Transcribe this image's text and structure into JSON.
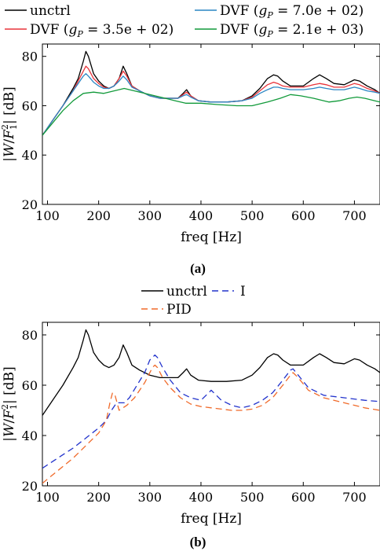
{
  "chart_data": [
    {
      "type": "line",
      "caption": "(a)",
      "xlabel": "freq [Hz]",
      "ylabel": "|W/F_1^2| [dB]",
      "xlim": [
        90,
        750
      ],
      "ylim": [
        20,
        85
      ],
      "xticks": [
        100,
        200,
        300,
        400,
        500,
        600,
        700
      ],
      "yticks": [
        20,
        40,
        60,
        80
      ],
      "grid": false,
      "legend_position": "top",
      "series": [
        {
          "name": "unctrl",
          "color": "#000000",
          "dash": "solid",
          "x": [
            90,
            110,
            130,
            150,
            160,
            170,
            175,
            180,
            190,
            200,
            210,
            220,
            230,
            240,
            248,
            255,
            265,
            280,
            300,
            320,
            340,
            355,
            365,
            372,
            380,
            395,
            420,
            450,
            480,
            500,
            515,
            530,
            542,
            550,
            560,
            575,
            600,
            620,
            632,
            645,
            660,
            680,
            700,
            710,
            725,
            740,
            750
          ],
          "y": [
            48,
            54,
            60,
            67,
            71,
            78,
            82,
            80,
            73,
            70,
            68,
            67,
            68,
            71,
            76,
            73,
            68,
            66,
            64,
            63,
            63,
            63,
            65,
            66.5,
            64,
            62,
            61.5,
            61.5,
            62,
            64,
            67,
            71,
            72.5,
            72,
            70,
            68,
            68,
            71,
            72.5,
            71,
            69,
            68.5,
            70.5,
            70,
            68,
            66.5,
            65
          ]
        },
        {
          "name": "DVF (g_P = 3.5e+02)",
          "color": "#e8333a",
          "dash": "solid",
          "x": [
            90,
            110,
            130,
            150,
            160,
            170,
            175,
            180,
            190,
            200,
            210,
            220,
            230,
            240,
            248,
            255,
            265,
            280,
            300,
            320,
            340,
            355,
            365,
            372,
            380,
            395,
            420,
            450,
            480,
            500,
            515,
            530,
            542,
            550,
            560,
            575,
            600,
            620,
            632,
            645,
            660,
            680,
            700,
            710,
            725,
            740,
            750
          ],
          "y": [
            48,
            54,
            60,
            66,
            70,
            74,
            76,
            75,
            71,
            69,
            67.5,
            67,
            68,
            71,
            74,
            72,
            68,
            66,
            64,
            63,
            63,
            63,
            64.5,
            65.5,
            64,
            62,
            61.5,
            61.5,
            62,
            63.5,
            66,
            68.5,
            69.5,
            69,
            68,
            67.5,
            67.5,
            68.5,
            69,
            68.5,
            67.5,
            67.5,
            69,
            68.5,
            67,
            66,
            65
          ]
        },
        {
          "name": "DVF (g_P = 7.0e+02)",
          "color": "#2a85c4",
          "dash": "solid",
          "x": [
            90,
            110,
            130,
            150,
            160,
            170,
            175,
            180,
            190,
            200,
            210,
            220,
            230,
            240,
            248,
            255,
            265,
            280,
            300,
            320,
            340,
            355,
            365,
            372,
            380,
            395,
            420,
            450,
            480,
            500,
            515,
            530,
            542,
            550,
            560,
            575,
            600,
            620,
            632,
            645,
            660,
            680,
            700,
            710,
            725,
            740,
            750
          ],
          "y": [
            48,
            54,
            60,
            66,
            69,
            72,
            73,
            72,
            69.5,
            68,
            67,
            67,
            68,
            70,
            72,
            70.5,
            67.5,
            66,
            64,
            63,
            63,
            63,
            64,
            64.5,
            63.5,
            62,
            61.5,
            61.5,
            62,
            63,
            65,
            66.5,
            67.5,
            67.5,
            67,
            66.5,
            66.5,
            67,
            67.5,
            67,
            66.5,
            66.5,
            67.5,
            67,
            66,
            65.5,
            65
          ]
        },
        {
          "name": "DVF (g_P = 2.1e+03)",
          "color": "#119a3a",
          "dash": "solid",
          "x": [
            90,
            110,
            130,
            150,
            170,
            190,
            210,
            230,
            250,
            270,
            290,
            310,
            330,
            350,
            370,
            400,
            430,
            470,
            500,
            530,
            555,
            575,
            595,
            620,
            650,
            670,
            690,
            705,
            720,
            740,
            750
          ],
          "y": [
            48,
            53,
            58,
            62,
            65,
            65.5,
            65,
            66,
            67,
            66,
            65,
            64,
            63,
            62,
            61,
            61,
            60.5,
            60,
            60,
            61.5,
            63,
            64.5,
            64,
            63,
            61.5,
            62,
            63,
            63.5,
            63,
            62,
            61.5
          ]
        }
      ]
    },
    {
      "type": "line",
      "caption": "(b)",
      "xlabel": "freq [Hz]",
      "ylabel": "|W/F_1^2| [dB]",
      "xlim": [
        90,
        750
      ],
      "ylim": [
        20,
        85
      ],
      "xticks": [
        100,
        200,
        300,
        400,
        500,
        600,
        700
      ],
      "yticks": [
        20,
        40,
        60,
        80
      ],
      "grid": false,
      "legend_position": "top",
      "series": [
        {
          "name": "unctrl",
          "color": "#000000",
          "dash": "solid",
          "x": [
            90,
            110,
            130,
            150,
            160,
            170,
            175,
            180,
            190,
            200,
            210,
            220,
            230,
            240,
            248,
            255,
            265,
            280,
            300,
            320,
            340,
            355,
            365,
            372,
            380,
            395,
            420,
            450,
            480,
            500,
            515,
            530,
            542,
            550,
            560,
            575,
            600,
            620,
            632,
            645,
            660,
            680,
            700,
            710,
            725,
            740,
            750
          ],
          "y": [
            48,
            54,
            60,
            67,
            71,
            78,
            82,
            80,
            73,
            70,
            68,
            67,
            68,
            71,
            76,
            73,
            68,
            66,
            64,
            63,
            63,
            63,
            65,
            66.5,
            64,
            62,
            61.5,
            61.5,
            62,
            64,
            67,
            71,
            72.5,
            72,
            70,
            68,
            68,
            71,
            72.5,
            71,
            69,
            68.5,
            70.5,
            70,
            68,
            66.5,
            65
          ]
        },
        {
          "name": "I",
          "color": "#2233cc",
          "dash": "8,5",
          "x": [
            90,
            120,
            150,
            175,
            200,
            215,
            225,
            235,
            250,
            260,
            275,
            290,
            300,
            310,
            315,
            325,
            340,
            360,
            380,
            400,
            410,
            420,
            430,
            440,
            460,
            480,
            500,
            520,
            540,
            560,
            575,
            580,
            590,
            610,
            640,
            680,
            720,
            750
          ],
          "y": [
            27,
            31,
            35,
            39,
            43,
            46,
            50,
            53,
            53,
            55,
            60,
            65,
            70,
            72,
            71,
            67,
            62,
            57,
            55,
            54,
            56,
            58,
            56,
            54,
            52,
            51,
            52,
            54,
            57,
            62,
            66,
            66.5,
            64,
            59,
            56,
            55,
            54,
            53.5
          ]
        },
        {
          "name": "PID",
          "color": "#f06a2a",
          "dash": "8,5",
          "x": [
            90,
            120,
            150,
            175,
            200,
            215,
            222,
            227,
            232,
            240,
            255,
            270,
            290,
            305,
            310,
            315,
            325,
            340,
            360,
            380,
            400,
            420,
            440,
            460,
            480,
            500,
            520,
            540,
            560,
            575,
            580,
            590,
            610,
            640,
            680,
            720,
            750
          ],
          "y": [
            21,
            26,
            31,
            36,
            41,
            46,
            53,
            57,
            56,
            50,
            52,
            55,
            61,
            67,
            68,
            67,
            63,
            59,
            55,
            52.5,
            51.5,
            51,
            50.5,
            50,
            50,
            50.5,
            52,
            55,
            60,
            64,
            65,
            63,
            58,
            55,
            53,
            51,
            50
          ]
        }
      ]
    }
  ],
  "legend_a": {
    "unctrl": "unctrl",
    "dvf1_prefix": "DVF",
    "dvf1_sub": "P",
    "dvf1_value": "= 3.5e + 02)",
    "dvf2_prefix": "DVF",
    "dvf2_sub": "P",
    "dvf2_value": "= 7.0e + 02)",
    "dvf3_prefix": "DVF",
    "dvf3_sub": "P",
    "dvf3_value": "= 2.1e + 03)"
  },
  "legend_b": {
    "unctrl": "unctrl",
    "i": "I",
    "pid": "PID"
  }
}
